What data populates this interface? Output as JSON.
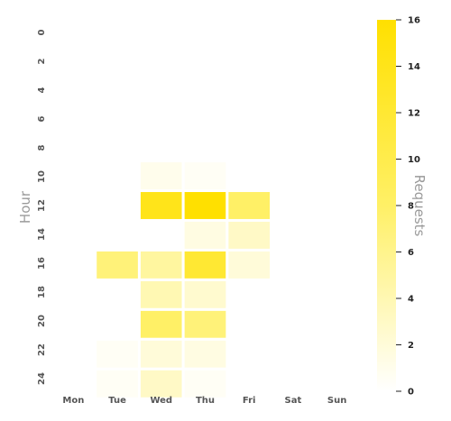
{
  "chart_data": {
    "type": "heatmap",
    "title": "",
    "xlabel": "",
    "ylabel": "Hour",
    "colorbar_label": "Requests",
    "x_categories": [
      "Mon",
      "Tue",
      "Wed",
      "Thu",
      "Fri",
      "Sat",
      "Sun"
    ],
    "y_categories": [
      "0",
      "1",
      "2",
      "3",
      "4",
      "5",
      "6",
      "7",
      "8",
      "9",
      "10",
      "11",
      "12",
      "13",
      "14",
      "15",
      "16",
      "17",
      "18",
      "19",
      "20",
      "21",
      "22",
      "23",
      "24"
    ],
    "y_tick_labels": [
      "0",
      "2",
      "4",
      "6",
      "8",
      "10",
      "12",
      "14",
      "16",
      "18",
      "20",
      "22",
      "24"
    ],
    "values": [
      [
        0,
        0,
        0,
        0,
        0,
        0,
        0
      ],
      [
        0,
        0,
        0,
        0,
        0,
        0,
        0
      ],
      [
        0,
        0,
        0,
        0,
        0,
        0,
        0
      ],
      [
        0,
        0,
        0,
        0,
        0,
        0,
        0
      ],
      [
        0,
        0,
        0,
        0,
        0,
        0,
        0
      ],
      [
        0,
        0,
        0,
        0,
        0,
        0,
        0
      ],
      [
        0,
        0,
        0,
        0,
        0,
        0,
        0
      ],
      [
        0,
        0,
        0,
        0,
        0,
        0,
        0
      ],
      [
        0,
        0,
        0,
        0,
        0,
        0,
        0
      ],
      [
        0,
        0,
        0,
        0,
        0,
        0,
        0
      ],
      [
        0,
        0,
        1,
        0.5,
        0,
        0,
        0
      ],
      [
        0,
        0,
        0,
        0,
        0,
        0,
        0
      ],
      [
        0,
        0,
        14,
        16,
        8,
        0,
        0
      ],
      [
        0,
        0,
        0,
        0,
        0,
        0,
        0
      ],
      [
        0,
        0,
        0,
        1.5,
        3,
        0,
        0
      ],
      [
        0,
        0,
        0,
        0,
        0,
        0,
        0
      ],
      [
        0,
        7,
        5,
        12,
        2,
        0,
        0
      ],
      [
        0,
        0,
        0,
        0,
        0,
        0,
        0
      ],
      [
        0,
        0,
        4,
        2.5,
        0,
        0,
        0
      ],
      [
        0,
        0,
        0,
        0,
        0,
        0,
        0
      ],
      [
        0,
        0,
        8,
        7,
        0,
        0,
        0
      ],
      [
        0,
        0,
        0,
        0,
        0,
        0,
        0
      ],
      [
        0,
        0.5,
        2,
        1.5,
        0,
        0,
        0
      ],
      [
        0,
        0,
        0,
        0,
        0,
        0,
        0
      ],
      [
        0,
        0.5,
        3,
        0.5,
        0,
        0,
        0
      ]
    ],
    "value_range": [
      0,
      16
    ],
    "colorbar_ticks": [
      0,
      2,
      4,
      6,
      8,
      10,
      12,
      14,
      16
    ],
    "colormap": {
      "low": "#ffffff",
      "mid": "#fff066",
      "high": "#ffe000"
    },
    "cell_border_color": "#ffffff",
    "grid": false,
    "legend": "colorbar-right"
  }
}
